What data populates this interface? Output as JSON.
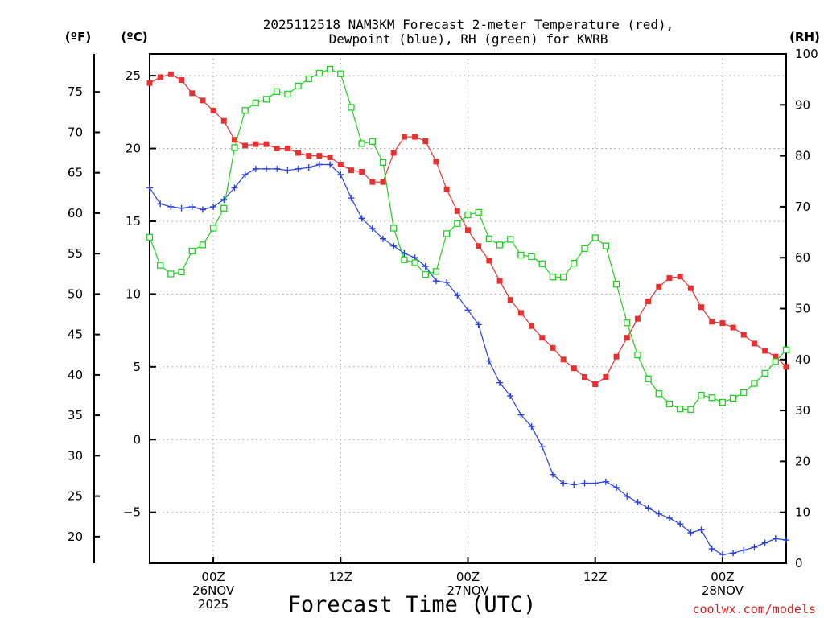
{
  "chart_data": {
    "type": "line",
    "title_line1": "2025112518 NAM3KM Forecast 2-meter Temperature (red),",
    "title_line2": "Dewpoint (blue), RH (green) for KWRB",
    "xlabel": "Forecast Time (UTC)",
    "credit": "coolwx.com/models",
    "units": {
      "fahrenheit": "(ºF)",
      "celsius": "(ºC)",
      "rh": "(RH)"
    },
    "x_unit": "hours since 2025-11-25 18Z",
    "xlim": [
      0,
      60
    ],
    "celsius_axis": {
      "ylim": [
        -8.5,
        26.5
      ],
      "ticks": [
        25,
        20,
        15,
        10,
        5,
        0,
        -5
      ],
      "tick_labels": [
        "25",
        "20",
        "15",
        "10",
        "5",
        "0",
        "−5"
      ]
    },
    "fahrenheit_axis": {
      "ticks": [
        75,
        70,
        65,
        60,
        55,
        50,
        45,
        40,
        35,
        30,
        25,
        20
      ],
      "tick_labels": [
        "75",
        "70",
        "65",
        "60",
        "55",
        "50",
        "45",
        "40",
        "35",
        "30",
        "25",
        "20"
      ]
    },
    "rh_axis": {
      "ylim": [
        0,
        100
      ],
      "ticks": [
        100,
        90,
        80,
        70,
        60,
        50,
        40,
        30,
        20,
        10,
        0
      ],
      "tick_labels": [
        "100",
        "90",
        "80",
        "70",
        "60",
        "50",
        "40",
        "30",
        "20",
        "10",
        "0"
      ]
    },
    "x_ticks": [
      {
        "hour": 6,
        "labels": [
          "00Z",
          "26NOV",
          "2025"
        ]
      },
      {
        "hour": 18,
        "labels": [
          "12Z"
        ]
      },
      {
        "hour": 30,
        "labels": [
          "00Z",
          "27NOV"
        ]
      },
      {
        "hour": 42,
        "labels": [
          "12Z"
        ]
      },
      {
        "hour": 54,
        "labels": [
          "00Z",
          "28NOV"
        ]
      }
    ],
    "series": [
      {
        "name": "2-meter Temperature",
        "unit": "°C",
        "color": "#e83030",
        "marker": "filled-square",
        "values": [
          24.5,
          24.9,
          25.1,
          24.7,
          23.8,
          23.3,
          22.6,
          21.9,
          20.6,
          20.2,
          20.3,
          20.3,
          20.0,
          20.0,
          19.7,
          19.5,
          19.5,
          19.4,
          18.9,
          18.5,
          18.4,
          17.7,
          17.7,
          19.7,
          20.8,
          20.8,
          20.5,
          19.1,
          17.2,
          15.7,
          14.4,
          13.3,
          12.3,
          10.9,
          9.6,
          8.7,
          7.8,
          7.0,
          6.3,
          5.5,
          4.9,
          4.3,
          3.8,
          4.3,
          5.7,
          7.0,
          8.3,
          9.5,
          10.5,
          11.1,
          11.2,
          10.4,
          9.1,
          8.1,
          8.0,
          7.7,
          7.2,
          6.6,
          6.1,
          5.7,
          5.0
        ]
      },
      {
        "name": "Dewpoint",
        "unit": "°C",
        "color": "#2840e0",
        "marker": "plus",
        "values": [
          17.3,
          16.2,
          16.0,
          15.9,
          16.0,
          15.8,
          16.0,
          16.5,
          17.3,
          18.2,
          18.6,
          18.6,
          18.6,
          18.5,
          18.6,
          18.7,
          18.9,
          18.9,
          18.2,
          16.6,
          15.2,
          14.5,
          13.8,
          13.3,
          12.8,
          12.5,
          11.9,
          10.9,
          10.8,
          9.9,
          8.9,
          7.9,
          5.4,
          3.9,
          3.0,
          1.7,
          0.9,
          -0.5,
          -2.4,
          -3.0,
          -3.1,
          -3.0,
          -3.0,
          -2.9,
          -3.3,
          -3.9,
          -4.3,
          -4.7,
          -5.1,
          -5.4,
          -5.8,
          -6.4,
          -6.2,
          -7.5,
          -7.9,
          -7.8,
          -7.6,
          -7.4,
          -7.1,
          -6.8,
          -6.9
        ]
      },
      {
        "name": "Relative Humidity",
        "unit": "%",
        "color": "#20d020",
        "marker": "open-square",
        "values": [
          64.0,
          58.5,
          56.8,
          57.2,
          61.3,
          62.5,
          65.8,
          69.7,
          81.6,
          88.9,
          90.4,
          91.1,
          92.6,
          92.1,
          93.7,
          95.1,
          96.2,
          97.0,
          96.1,
          89.5,
          82.4,
          82.8,
          78.7,
          65.8,
          59.6,
          59.0,
          56.7,
          57.3,
          64.7,
          66.7,
          68.4,
          68.9,
          63.7,
          62.5,
          63.6,
          60.5,
          60.2,
          58.8,
          56.2,
          56.2,
          58.9,
          61.8,
          63.9,
          62.3,
          54.8,
          47.2,
          40.9,
          36.2,
          33.3,
          31.3,
          30.3,
          30.2,
          33.0,
          32.5,
          31.6,
          32.4,
          33.5,
          35.3,
          37.3,
          39.6,
          41.9
        ]
      }
    ]
  }
}
